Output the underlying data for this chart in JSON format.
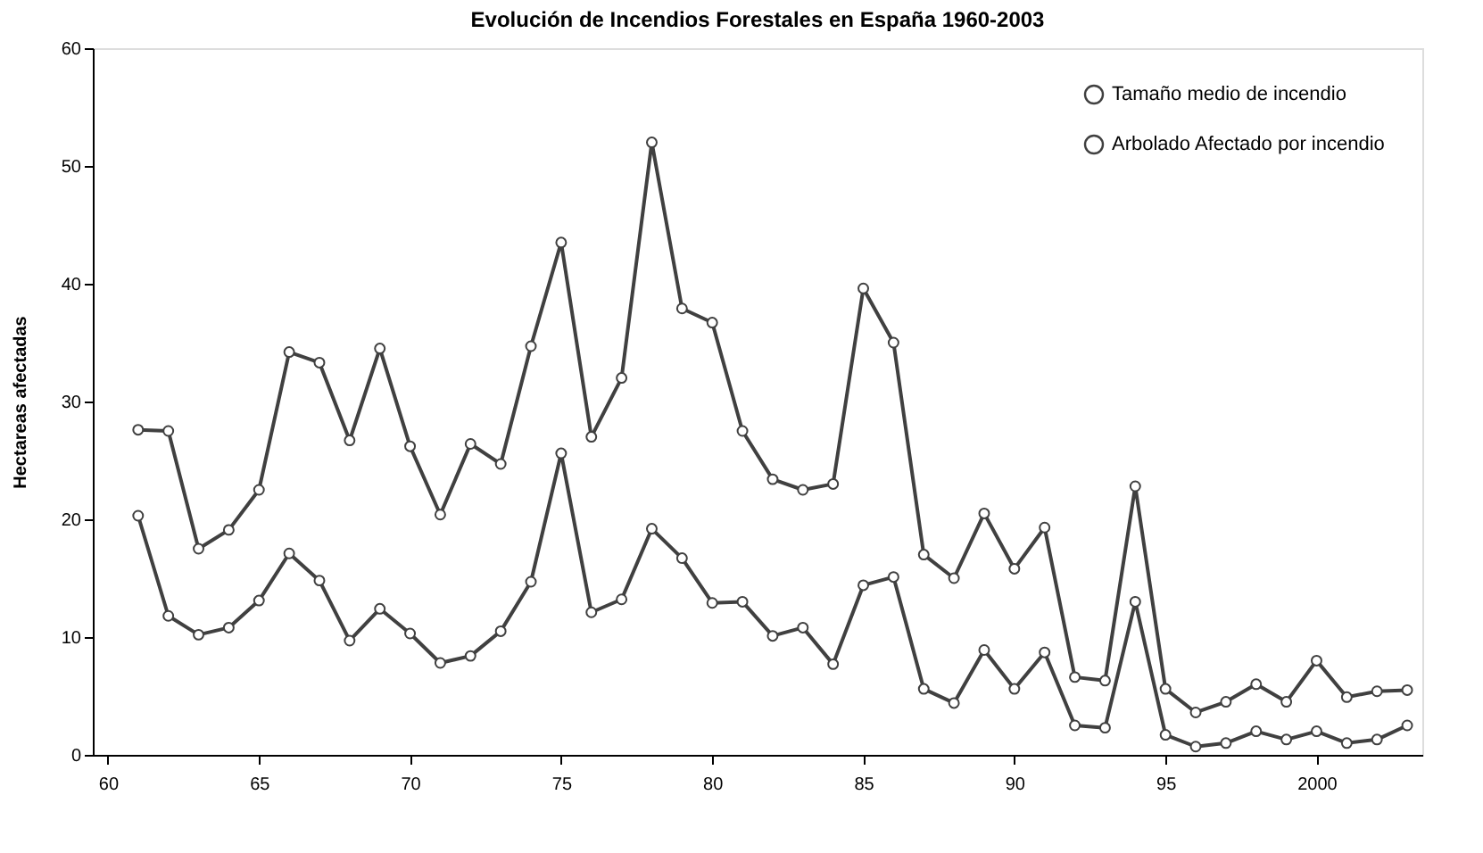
{
  "chart_data": {
    "type": "line",
    "title": "Evolución de Incendios Forestales en España 1960-2003",
    "ylabel": "Hectareas afectadas",
    "x": [
      1961,
      1962,
      1963,
      1964,
      1965,
      1966,
      1967,
      1968,
      1969,
      1970,
      1971,
      1972,
      1973,
      1974,
      1975,
      1976,
      1977,
      1978,
      1979,
      1980,
      1981,
      1982,
      1983,
      1984,
      1985,
      1986,
      1987,
      1988,
      1989,
      1990,
      1991,
      1992,
      1993,
      1994,
      1995,
      1996,
      1997,
      1998,
      1999,
      2000,
      2001,
      2002,
      2003
    ],
    "series": [
      {
        "name": "Tamaño medio de incendio",
        "color": "#404040",
        "values": [
          27.6,
          27.5,
          17.5,
          19.1,
          22.5,
          34.2,
          33.3,
          26.7,
          34.5,
          26.2,
          20.4,
          26.4,
          24.7,
          34.7,
          43.5,
          27.0,
          32.0,
          52.0,
          37.9,
          36.7,
          27.5,
          23.4,
          22.5,
          23.0,
          39.6,
          35.0,
          17.0,
          15.0,
          20.5,
          15.8,
          19.3,
          6.6,
          6.3,
          22.8,
          5.6,
          3.6,
          4.5,
          6.0,
          4.5,
          8.0,
          4.9,
          5.4,
          5.5
        ]
      },
      {
        "name": "Arbolado Afectado por incendio",
        "color": "#404040",
        "values": [
          20.3,
          11.8,
          10.2,
          10.8,
          13.1,
          17.1,
          14.8,
          9.7,
          12.4,
          10.3,
          7.8,
          8.4,
          10.5,
          14.7,
          25.6,
          12.1,
          13.2,
          19.2,
          16.7,
          12.9,
          13.0,
          10.1,
          10.8,
          7.7,
          14.4,
          15.1,
          5.6,
          4.4,
          8.9,
          5.6,
          8.7,
          2.5,
          2.3,
          13.0,
          1.7,
          0.7,
          1.0,
          2.0,
          1.3,
          2.0,
          1.0,
          1.3,
          2.5
        ]
      }
    ],
    "xlim": [
      1959.5,
      2003.5
    ],
    "xticks": [
      {
        "value": 1960,
        "label": "60"
      },
      {
        "value": 1965,
        "label": "65"
      },
      {
        "value": 1970,
        "label": "70"
      },
      {
        "value": 1975,
        "label": "75"
      },
      {
        "value": 1980,
        "label": "80"
      },
      {
        "value": 1985,
        "label": "85"
      },
      {
        "value": 1990,
        "label": "90"
      },
      {
        "value": 1995,
        "label": "95"
      },
      {
        "value": 2000,
        "label": "2000"
      }
    ],
    "ylim": [
      0,
      60
    ],
    "yticks": [
      0,
      10,
      20,
      30,
      40,
      50,
      60
    ],
    "grid": false,
    "legend": "top right",
    "marker": "circle",
    "line_style": "solid"
  }
}
